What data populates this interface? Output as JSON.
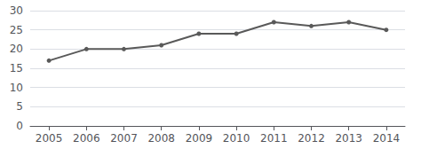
{
  "chart_data": {
    "type": "line",
    "x": [
      2005,
      2006,
      2007,
      2008,
      2009,
      2010,
      2011,
      2012,
      2013,
      2014
    ],
    "values": [
      17,
      20,
      20,
      21,
      24,
      24,
      27,
      26,
      27,
      25
    ],
    "color": "#595959",
    "marker": "circle",
    "xlim": [
      2004.5,
      2014.5
    ],
    "xticks": [
      2005,
      2006,
      2007,
      2008,
      2009,
      2010,
      2011,
      2012,
      2013,
      2014
    ],
    "ylim": [
      0,
      30
    ],
    "yticks": [
      0,
      5,
      10,
      15,
      20,
      25,
      30
    ],
    "grid": true
  }
}
